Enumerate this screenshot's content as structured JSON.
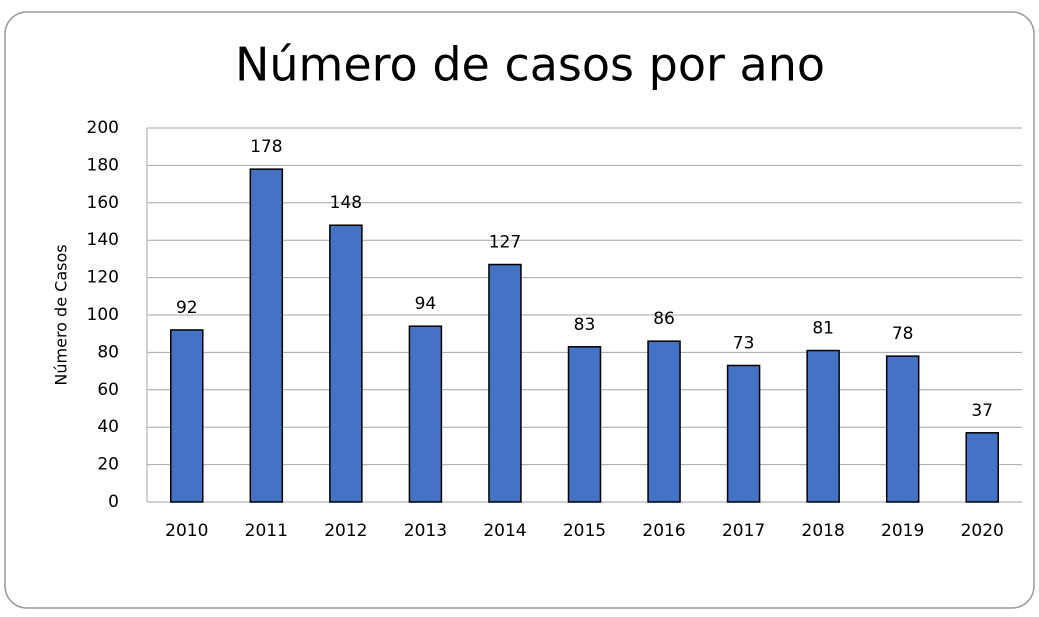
{
  "chart_data": {
    "type": "bar",
    "title": "Número de casos por ano",
    "y_label": "Número de Casos",
    "categories": [
      "2010",
      "2011",
      "2012",
      "2013",
      "2014",
      "2015",
      "2016",
      "2017",
      "2018",
      "2019",
      "2020"
    ],
    "values": [
      92,
      178,
      148,
      94,
      127,
      83,
      86,
      73,
      81,
      78,
      37
    ],
    "color": "#4472c4",
    "ylim": [
      0,
      200
    ],
    "yticks": [
      0,
      20,
      40,
      60,
      80,
      100,
      120,
      140,
      160,
      180,
      200
    ],
    "grid": true
  }
}
